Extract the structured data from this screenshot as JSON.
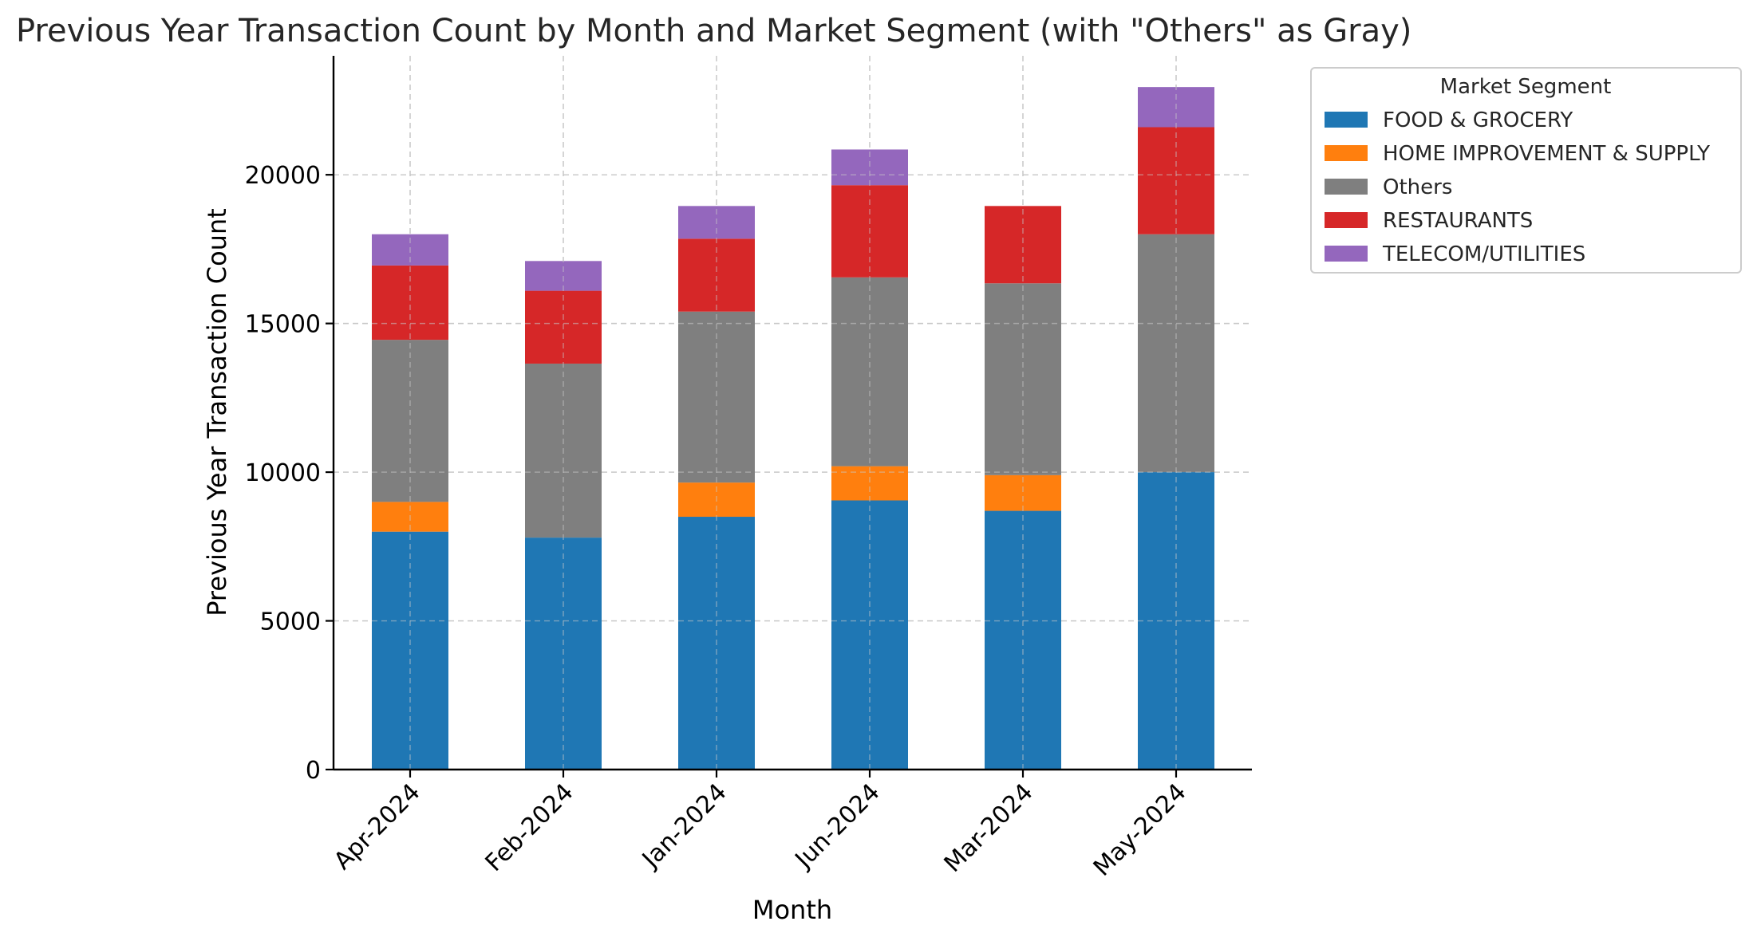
{
  "chart_data": {
    "type": "bar",
    "stacked": true,
    "title": "Previous Year Transaction Count by Month and Market Segment (with \"Others\" as Gray)",
    "xlabel": "Month",
    "ylabel": "Previous Year Transaction Count",
    "ylim": [
      0,
      24000
    ],
    "yticks": [
      0,
      5000,
      10000,
      15000,
      20000
    ],
    "grid": true,
    "categories": [
      "Apr-2024",
      "Feb-2024",
      "Jan-2024",
      "Jun-2024",
      "Mar-2024",
      "May-2024"
    ],
    "legend": {
      "title": "Market Segment",
      "position": "outside-top-right"
    },
    "series": [
      {
        "name": "FOOD & GROCERY",
        "color": "#1f77b4",
        "values": [
          8000,
          7800,
          8500,
          9050,
          8700,
          10000
        ]
      },
      {
        "name": "HOME IMPROVEMENT & SUPPLY",
        "color": "#ff7f0e",
        "values": [
          1000,
          0,
          1150,
          1150,
          1200,
          0
        ]
      },
      {
        "name": "Others",
        "color": "#7f7f7f",
        "values": [
          5450,
          5850,
          5750,
          6350,
          6450,
          8000
        ]
      },
      {
        "name": "RESTAURANTS",
        "color": "#d62728",
        "values": [
          2500,
          2450,
          2450,
          3100,
          2600,
          3600
        ]
      },
      {
        "name": "TELECOM/UTILITIES",
        "color": "#9467bd",
        "values": [
          1050,
          1000,
          1100,
          1200,
          0,
          1350
        ]
      }
    ]
  }
}
